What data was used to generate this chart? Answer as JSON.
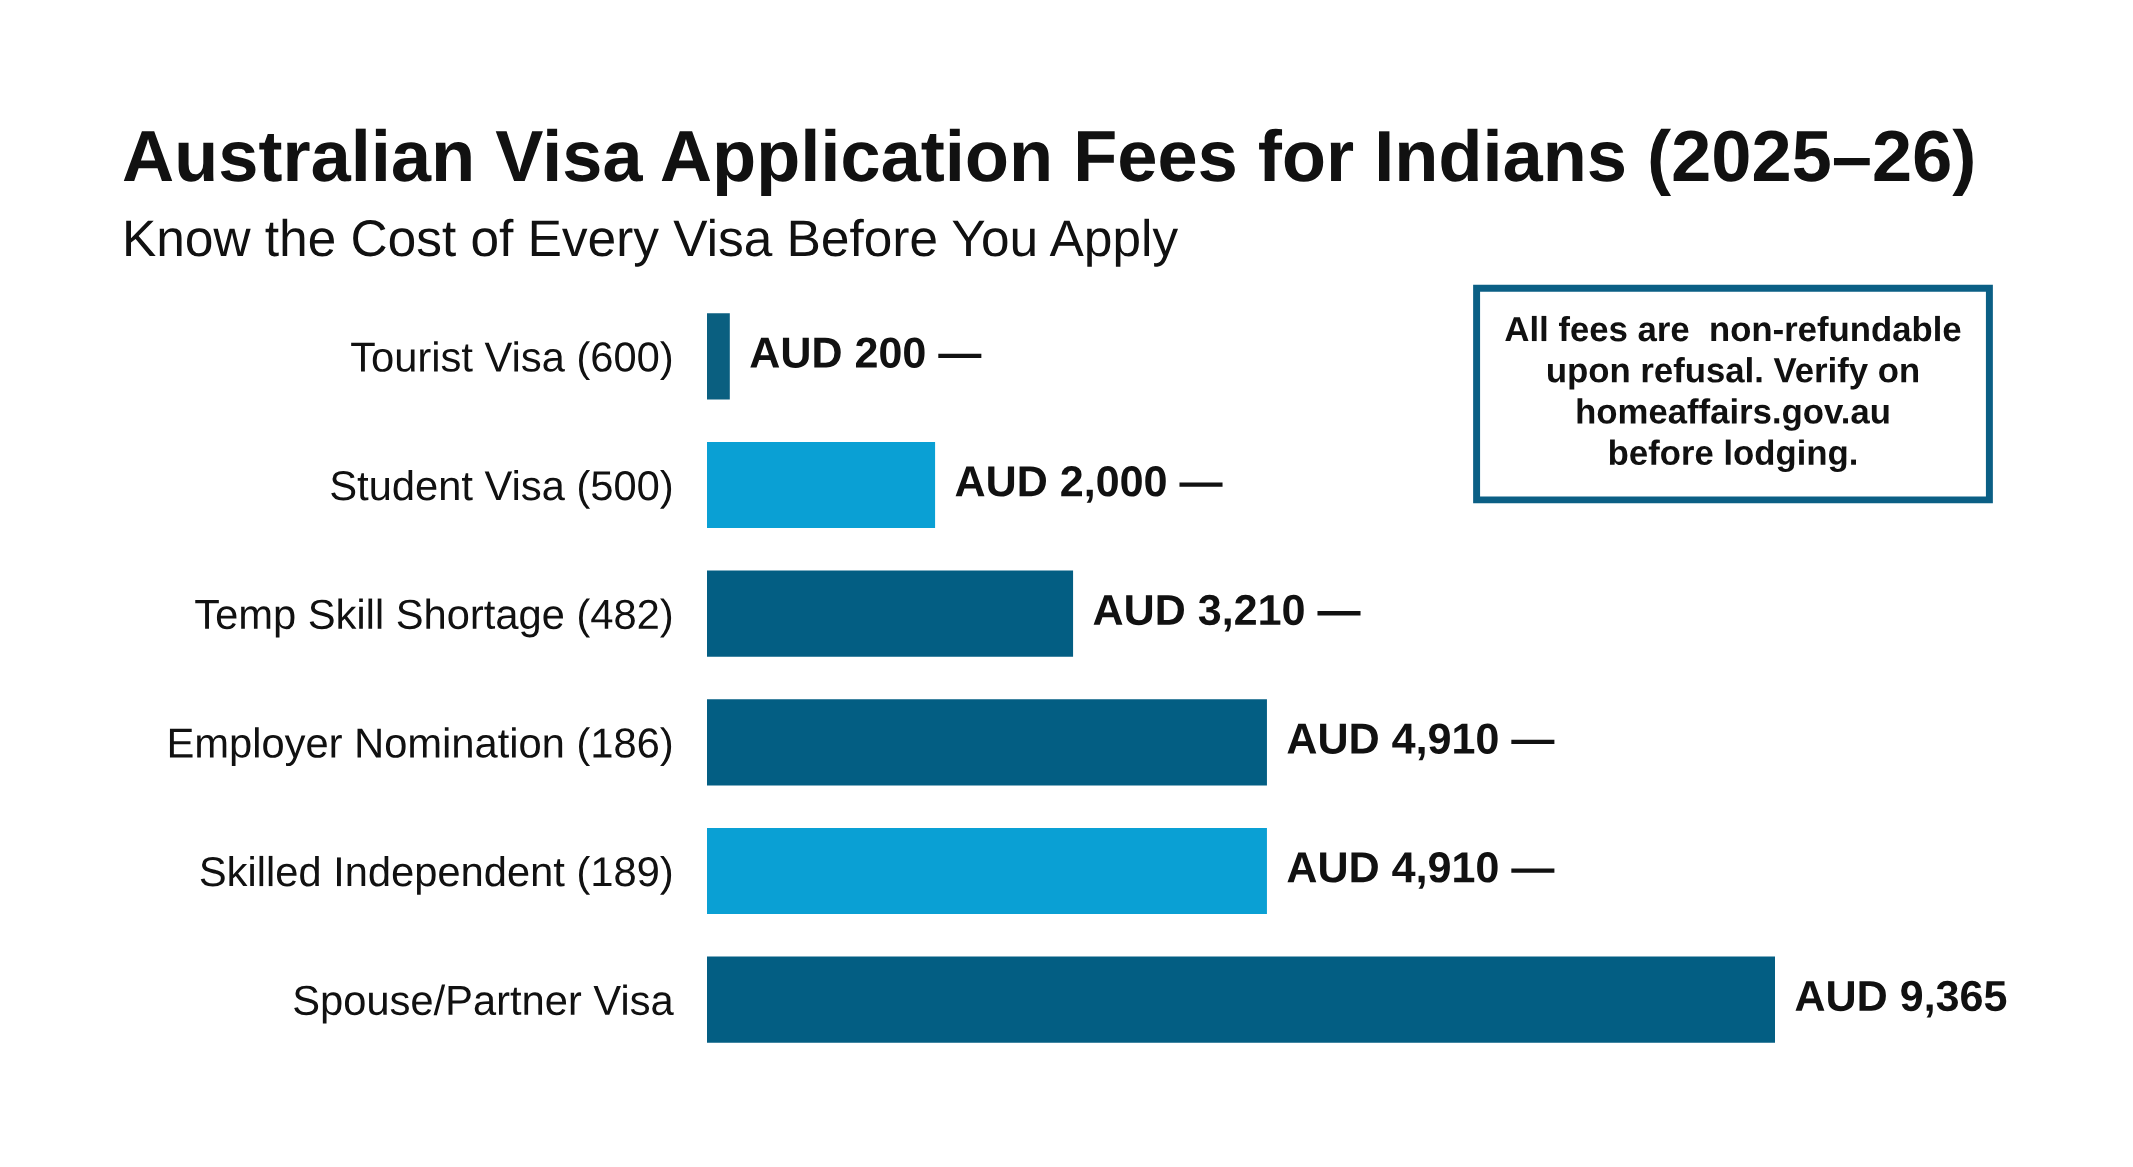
{
  "chart_data": {
    "type": "bar",
    "orientation": "horizontal",
    "title": "Australian Visa Application Fees for Indians (2025–26)",
    "subtitle": "Know the Cost of Every Visa Before You Apply",
    "categories": [
      "Tourist Visa (600)",
      "Student Visa (500)",
      "Temp Skill Shortage (482)",
      "Employer Nomination (186)",
      "Skilled Independent (189)",
      "Spouse/Partner Visa"
    ],
    "values": [
      200,
      2000,
      3210,
      4910,
      4910,
      9365
    ],
    "colors": [
      "#0a5f80",
      "#0aa0d4",
      "#035e83",
      "#035e83",
      "#0aa0d4",
      "#035e83"
    ],
    "value_labels": [
      "AUD 200 —",
      "AUD 2,000 —",
      "AUD 3,210 —",
      "AUD 4,910 —",
      "AUD 4,910 —",
      "AUD 9,365"
    ],
    "annotations": [
      "All fees are  non-refundable\nupon refusal. Verify on\nhomeaffairs.gov.au\nbefore lodging."
    ],
    "tick_labels": "y",
    "grid": false
  }
}
